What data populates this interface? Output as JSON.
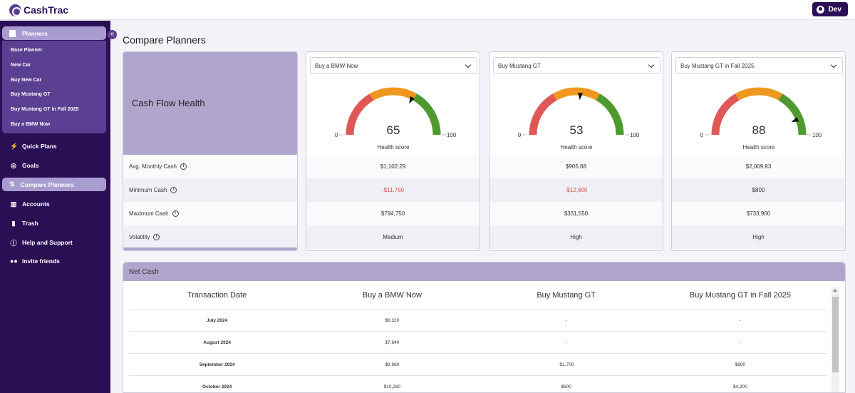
{
  "app": {
    "name": "CashTrac",
    "user": "Dev"
  },
  "sidebar": {
    "planners_label": "Planners",
    "planners_icon": "clipboard-icon",
    "sub_items": [
      "Base Planner",
      "New Car",
      "Buy New Car",
      "Buy Mustang GT",
      "Buy Mustang GT in Fall 2025",
      "Buy a BMW Now"
    ],
    "items": [
      {
        "label": "Quick Plans",
        "icon": "bolt-icon"
      },
      {
        "label": "Goals",
        "icon": "target-icon"
      },
      {
        "label": "Compare Planners",
        "icon": "compare-icon",
        "active": true
      },
      {
        "label": "Accounts",
        "icon": "bank-icon"
      },
      {
        "label": "Trash",
        "icon": "trash-icon"
      },
      {
        "label": "Help and Support",
        "icon": "help-icon"
      },
      {
        "label": "Invite friends",
        "icon": "people-icon"
      }
    ]
  },
  "page": {
    "title": "Compare Planners"
  },
  "metrics": {
    "heading": "Cash Flow Health",
    "rows": [
      "Avg. Monthly Cash",
      "Minimum Cash",
      "Maximum Cash",
      "Volatility"
    ]
  },
  "planners": [
    {
      "name": "Buy a BMW Now",
      "score": 65,
      "gauge_min": "0",
      "gauge_max": "100",
      "caption": "Health score",
      "avg_monthly": "$1,102.29",
      "min_cash": "-$11,760",
      "max_cash": "$794,750",
      "volatility": "Medium"
    },
    {
      "name": "Buy Mustang GT",
      "score": 53,
      "gauge_min": "0",
      "gauge_max": "100",
      "caption": "Health score",
      "avg_monthly": "$905.68",
      "min_cash": "-$12,600",
      "max_cash": "$331,550",
      "volatility": "High"
    },
    {
      "name": "Buy Mustang GT in Fall 2025",
      "score": 88,
      "gauge_min": "0",
      "gauge_max": "100",
      "caption": "Health score",
      "avg_monthly": "$2,009.83",
      "min_cash": "$800",
      "max_cash": "$733,900",
      "volatility": "High"
    }
  ],
  "net_cash": {
    "title": "Net Cash",
    "headers": [
      "Transaction Date",
      "Buy a BMW Now",
      "Buy Mustang GT",
      "Buy Mustang GT in Fall 2025"
    ],
    "rows": [
      [
        "July 2024",
        "$6,320",
        "-",
        "-"
      ],
      [
        "August 2024",
        "$7,640",
        "-",
        "-"
      ],
      [
        "September 2024",
        "$8,960",
        "-$1,700",
        "$800"
      ],
      [
        "October 2024",
        "$10,280",
        "$600",
        "$4,200"
      ]
    ]
  },
  "colors": {
    "sidebar": "#2a0f54",
    "accent": "#b0a6cd",
    "gauge_red": "#e05757",
    "gauge_orange": "#f0981e",
    "gauge_green": "#4f9a2f",
    "negative": "#d9534f"
  }
}
